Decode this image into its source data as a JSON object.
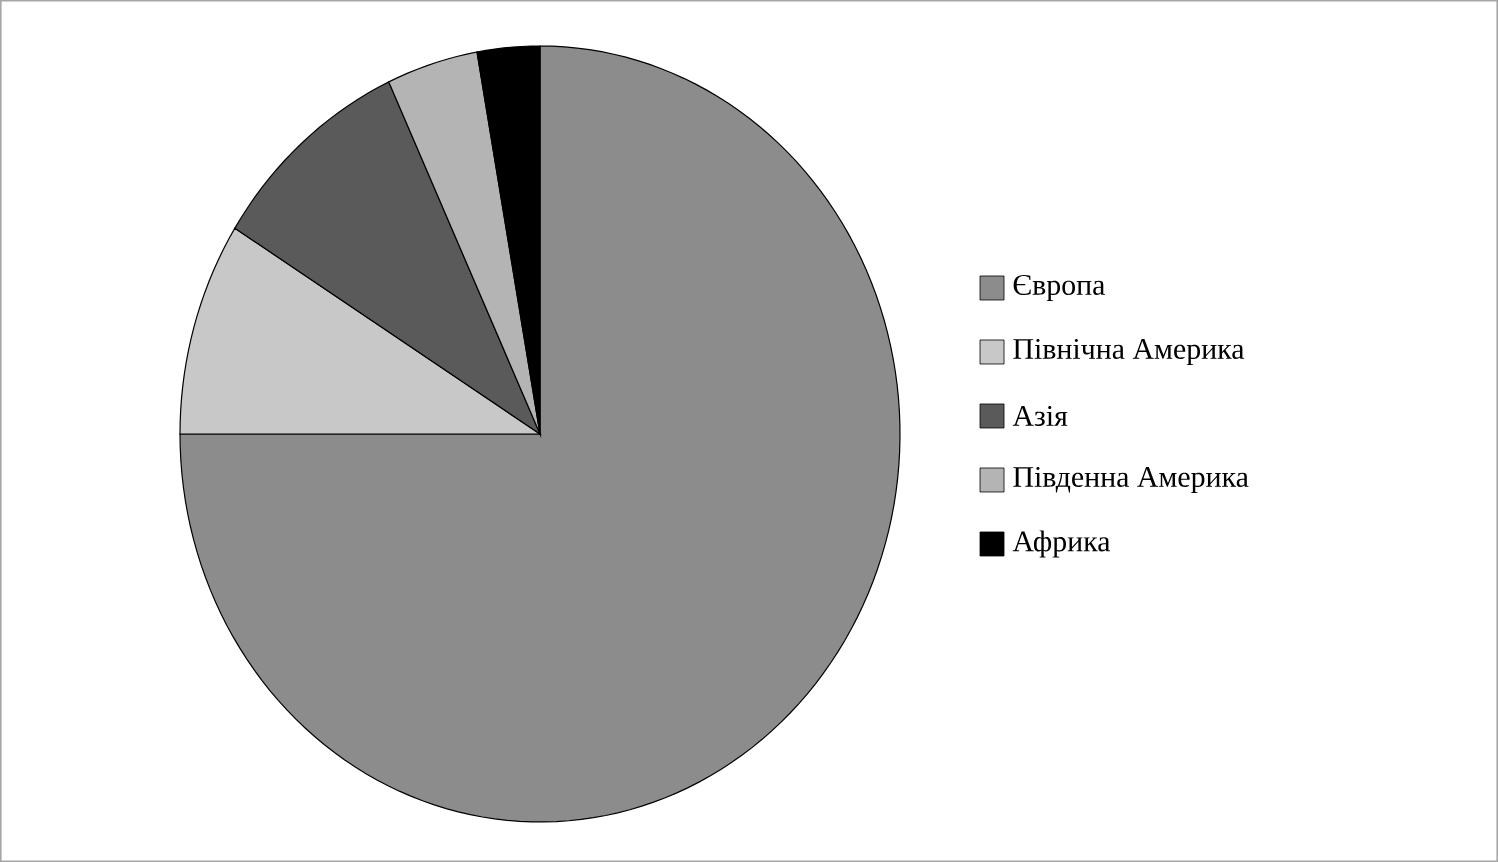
{
  "chart_data": {
    "type": "pie",
    "categories": [
      "Європа",
      "Північна Америка",
      "Азія",
      "Південна Америка",
      "Африка"
    ],
    "values": [
      75,
      8.9,
      9.2,
      4.1,
      2.8
    ],
    "colors": [
      "#8c8c8c",
      "#c8c8c8",
      "#5a5a5a",
      "#b4b4b4",
      "#000000"
    ],
    "legend": "right"
  }
}
